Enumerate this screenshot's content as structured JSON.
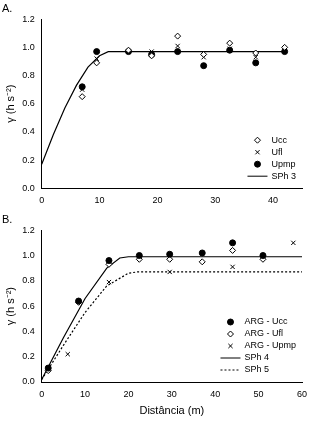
{
  "chart_data": [
    {
      "type": "scatter",
      "title": "A.",
      "ylabel": "γ (h s⁻²)",
      "xlim": [
        0,
        45
      ],
      "xticks": [
        0,
        10,
        20,
        30,
        40
      ],
      "ylim": [
        0,
        1.2
      ],
      "yticks": [
        {
          "value": 0,
          "label": "0.0"
        },
        0.2,
        0.4,
        0.6,
        0.8,
        {
          "value": 1,
          "label": "1.0"
        },
        1.2
      ],
      "grid": false,
      "legend": "lower right",
      "series": [
        {
          "name": "Ucc",
          "type": "scatter",
          "marker": "diamond",
          "color": "#000000",
          "x": [
            7,
            9.5,
            15,
            19,
            23.5,
            28,
            32.5,
            37,
            42
          ],
          "values": [
            0.65,
            0.89,
            0.98,
            0.94,
            1.08,
            0.95,
            1.03,
            0.96,
            1.0
          ]
        },
        {
          "name": "Ufl",
          "type": "scatter",
          "marker": "x",
          "color": "#000000",
          "x": [
            7,
            9.5,
            15,
            19,
            23.5,
            28,
            32.5,
            37,
            42
          ],
          "values": [
            0.7,
            0.92,
            0.97,
            0.97,
            1.01,
            0.93,
            0.99,
            0.93,
            0.98
          ]
        },
        {
          "name": "Upmp",
          "type": "scatter",
          "marker": "circle",
          "color": "#000000",
          "x": [
            7,
            9.5,
            15,
            19,
            23.5,
            28,
            32.5,
            37,
            42
          ],
          "values": [
            0.72,
            0.97,
            0.97,
            0.95,
            0.97,
            0.87,
            0.98,
            0.89,
            0.97
          ]
        },
        {
          "name": "SPh 3",
          "type": "line",
          "line_style": "solid",
          "color": "#000000",
          "x": [
            0,
            2,
            4,
            6,
            8,
            10,
            11.5,
            42
          ],
          "values": [
            0.17,
            0.38,
            0.57,
            0.73,
            0.86,
            0.94,
            0.97,
            0.97
          ]
        }
      ]
    },
    {
      "type": "scatter",
      "title": "B.",
      "ylabel": "γ (h s⁻²)",
      "xlabel": "Distância (m)",
      "xlim": [
        0,
        60
      ],
      "xticks": [
        0,
        10,
        20,
        30,
        40,
        50,
        60
      ],
      "ylim": [
        0,
        1.2
      ],
      "yticks": [
        {
          "value": 0,
          "label": "0.0"
        },
        0.2,
        0.4,
        0.6,
        0.8,
        {
          "value": 1,
          "label": "1.0"
        },
        1.2
      ],
      "grid": false,
      "legend": "lower right",
      "series": [
        {
          "name": "ARG - Ucc",
          "type": "scatter",
          "marker": "circle",
          "color": "#000000",
          "x": [
            1.5,
            8.5,
            15.5,
            22.5,
            29.5,
            37,
            44,
            51
          ],
          "values": [
            0.11,
            0.64,
            0.96,
            1.0,
            1.01,
            1.02,
            1.1,
            1.0
          ]
        },
        {
          "name": "ARG - Ufl",
          "type": "scatter",
          "marker": "diamond",
          "color": "#000000",
          "x": [
            1.5,
            8.5,
            15.5,
            22.5,
            29.5,
            37,
            44,
            51
          ],
          "values": [
            0.09,
            0.63,
            0.93,
            0.97,
            0.97,
            0.95,
            1.04,
            0.97
          ]
        },
        {
          "name": "ARG - Upmp",
          "type": "scatter",
          "marker": "x",
          "color": "#000000",
          "x": [
            6,
            15.5,
            29.5,
            44,
            58
          ],
          "values": [
            0.22,
            0.79,
            0.87,
            0.91,
            1.1
          ]
        },
        {
          "name": "SPh 4",
          "type": "line",
          "line_style": "solid",
          "color": "#000000",
          "x": [
            0,
            5,
            10,
            15,
            18,
            20,
            60
          ],
          "values": [
            0.02,
            0.35,
            0.66,
            0.9,
            0.98,
            0.99,
            0.99
          ]
        },
        {
          "name": "SPh 5",
          "type": "line",
          "line_style": "dotted",
          "color": "#000000",
          "x": [
            0,
            5,
            10,
            15,
            20,
            22,
            60
          ],
          "values": [
            0.02,
            0.29,
            0.55,
            0.76,
            0.86,
            0.87,
            0.87
          ]
        }
      ]
    }
  ]
}
